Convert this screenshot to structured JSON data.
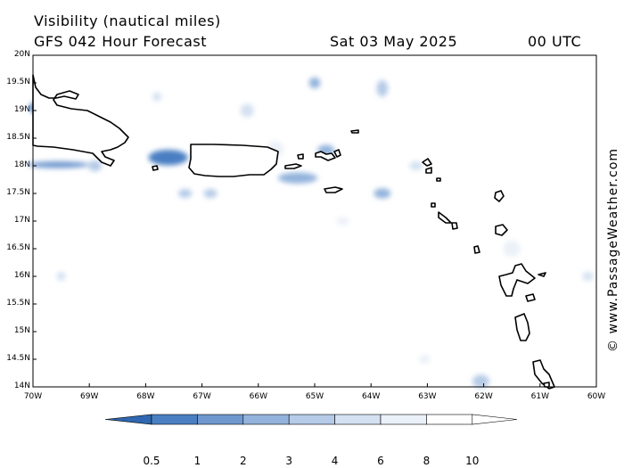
{
  "header": {
    "title": "Visibility (nautical miles)",
    "model": "GFS 042 Hour Forecast",
    "date": "Sat 03 May 2025",
    "time": "00 UTC"
  },
  "credit": "© www.PassageWeather.com",
  "map": {
    "lat_range": [
      14,
      20
    ],
    "lon_range": [
      -70,
      -60
    ],
    "lat_labels": [
      "20N",
      "19.5N",
      "19N",
      "18.5N",
      "18N",
      "17.5N",
      "17N",
      "16.5N",
      "16N",
      "15.5N",
      "15N",
      "14.5N",
      "14N"
    ],
    "lon_labels": [
      "70W",
      "69W",
      "68W",
      "67W",
      "66W",
      "65W",
      "64W",
      "63W",
      "62W",
      "61W",
      "60W"
    ],
    "water_color": "#ffffff",
    "coast_color": "#000000",
    "reduced_visibility_patches": [
      {
        "lon": -69.85,
        "lat": 19.05,
        "rx": 0.22,
        "ry": 0.12,
        "vis": 1
      },
      {
        "lon": -69.55,
        "lat": 18.02,
        "rx": 0.55,
        "ry": 0.06,
        "vis": 2
      },
      {
        "lon": -67.6,
        "lat": 18.15,
        "rx": 0.35,
        "ry": 0.14,
        "vis": 1
      },
      {
        "lon": -67.0,
        "lat": 18.25,
        "rx": 0.12,
        "ry": 0.1,
        "vis": 4
      },
      {
        "lon": -67.3,
        "lat": 17.5,
        "rx": 0.12,
        "ry": 0.08,
        "vis": 4
      },
      {
        "lon": -66.85,
        "lat": 17.5,
        "rx": 0.12,
        "ry": 0.08,
        "vis": 4
      },
      {
        "lon": -65.3,
        "lat": 17.78,
        "rx": 0.35,
        "ry": 0.1,
        "vis": 3
      },
      {
        "lon": -64.8,
        "lat": 18.28,
        "rx": 0.15,
        "ry": 0.1,
        "vis": 3
      },
      {
        "lon": -65.0,
        "lat": 19.5,
        "rx": 0.1,
        "ry": 0.1,
        "vis": 3
      },
      {
        "lon": -63.8,
        "lat": 19.4,
        "rx": 0.1,
        "ry": 0.15,
        "vis": 4
      },
      {
        "lon": -63.8,
        "lat": 17.5,
        "rx": 0.15,
        "ry": 0.09,
        "vis": 3
      },
      {
        "lon": -68.9,
        "lat": 18.0,
        "rx": 0.12,
        "ry": 0.1,
        "vis": 4
      },
      {
        "lon": -67.8,
        "lat": 19.25,
        "rx": 0.08,
        "ry": 0.08,
        "vis": 6
      },
      {
        "lon": -66.2,
        "lat": 19.0,
        "rx": 0.12,
        "ry": 0.12,
        "vis": 6
      },
      {
        "lon": -63.2,
        "lat": 18.0,
        "rx": 0.12,
        "ry": 0.08,
        "vis": 6
      },
      {
        "lon": -69.5,
        "lat": 16.0,
        "rx": 0.08,
        "ry": 0.08,
        "vis": 6
      },
      {
        "lon": -60.15,
        "lat": 16.0,
        "rx": 0.1,
        "ry": 0.08,
        "vis": 6
      },
      {
        "lon": -62.05,
        "lat": 14.1,
        "rx": 0.15,
        "ry": 0.12,
        "vis": 4
      },
      {
        "lon": -63.05,
        "lat": 14.5,
        "rx": 0.1,
        "ry": 0.08,
        "vis": 8
      },
      {
        "lon": -64.5,
        "lat": 17.0,
        "rx": 0.12,
        "ry": 0.07,
        "vis": 8
      },
      {
        "lon": -65.7,
        "lat": 18.3,
        "rx": 0.15,
        "ry": 0.15,
        "vis": 8
      },
      {
        "lon": -61.5,
        "lat": 16.5,
        "rx": 0.15,
        "ry": 0.15,
        "vis": 8
      }
    ]
  },
  "colorbar": {
    "labels": [
      "0.5",
      "1",
      "2",
      "3",
      "4",
      "6",
      "8",
      "10"
    ],
    "colors": [
      "#2f68b0",
      "#4a7fc2",
      "#6f98cf",
      "#93b3dc",
      "#b5cbe7",
      "#d4e1f1",
      "#ebf1f8",
      "#ffffff"
    ]
  }
}
